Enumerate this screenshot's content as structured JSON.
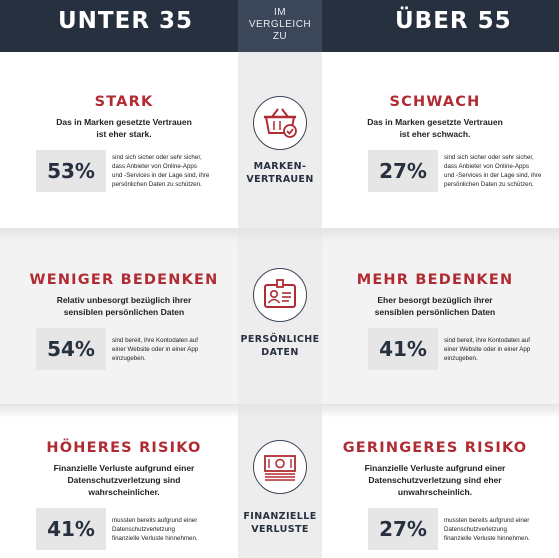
{
  "header": {
    "left_title": "UNTER 35",
    "right_title": "ÜBER 55",
    "middle_lines": [
      "IM",
      "VERGLEICH",
      "ZU"
    ]
  },
  "rows": [
    {
      "icon_label_lines": [
        "MARKEN-",
        "VERTRAUEN"
      ],
      "icon": "basket-check-icon",
      "left": {
        "heading": "STARK",
        "sub_lines": [
          "Das in Marken gesetzte Vertrauen",
          "ist eher stark."
        ],
        "percent": "53%",
        "desc_lines": [
          "sind sich sicher oder sehr sicher,",
          "dass Anbieter von Online-Apps",
          "und -Services in der Lage sind, ihre",
          "persönlichen Daten zu schützen."
        ]
      },
      "right": {
        "heading": "SCHWACH",
        "sub_lines": [
          "Das in Marken gesetzte Vertrauen",
          "ist eher schwach."
        ],
        "percent": "27%",
        "desc_lines": [
          "sind sich sicher oder sehr sicher,",
          "dass Anbieter von Online-Apps",
          "und -Services in der Lage sind, ihre",
          "persönlichen Daten zu schützen."
        ]
      }
    },
    {
      "icon_label_lines": [
        "PERSÖNLICHE",
        "DATEN"
      ],
      "icon": "id-card-icon",
      "left": {
        "heading": "WENIGER BEDENKEN",
        "sub_lines": [
          "Relativ unbesorgt bezüglich ihrer",
          "sensiblen persönlichen Daten"
        ],
        "percent": "54%",
        "desc_lines": [
          "sind bereit, ihre Kontodaten auf",
          "einer Website oder in einer App",
          "einzugeben."
        ]
      },
      "right": {
        "heading": "MEHR BEDENKEN",
        "sub_lines": [
          "Eher besorgt bezüglich ihrer",
          "sensiblen persönlichen Daten"
        ],
        "percent": "41%",
        "desc_lines": [
          "sind bereit, ihre Kontodaten auf",
          "einer Website oder in einer App",
          "einzugeben."
        ]
      }
    },
    {
      "icon_label_lines": [
        "FINANZIELLE",
        "VERLUSTE"
      ],
      "icon": "money-stack-icon",
      "left": {
        "heading": "HÖHERES RISIKO",
        "sub_lines": [
          "Finanzielle Verluste aufgrund einer",
          "Datenschutzverletzung sind",
          "wahrscheinlicher."
        ],
        "percent": "41%",
        "desc_lines": [
          "mussten bereits aufgrund einer",
          "Datenschutzverletzung",
          "finanzielle Verluste hinnehmen."
        ]
      },
      "right": {
        "heading": "GERINGERES RISIKO",
        "sub_lines": [
          "Finanzielle Verluste aufgrund einer",
          "Datenschutzverletzung sind eher",
          "unwahrscheinlich."
        ],
        "percent": "27%",
        "desc_lines": [
          "mussten bereits aufgrund einer",
          "Datenschutzverletzung",
          "finanzielle Verluste hinnehmen."
        ]
      }
    }
  ],
  "colors": {
    "header_bg": "#27303f",
    "accent_red": "#b12b33",
    "icon_stroke": "#3b4658"
  }
}
